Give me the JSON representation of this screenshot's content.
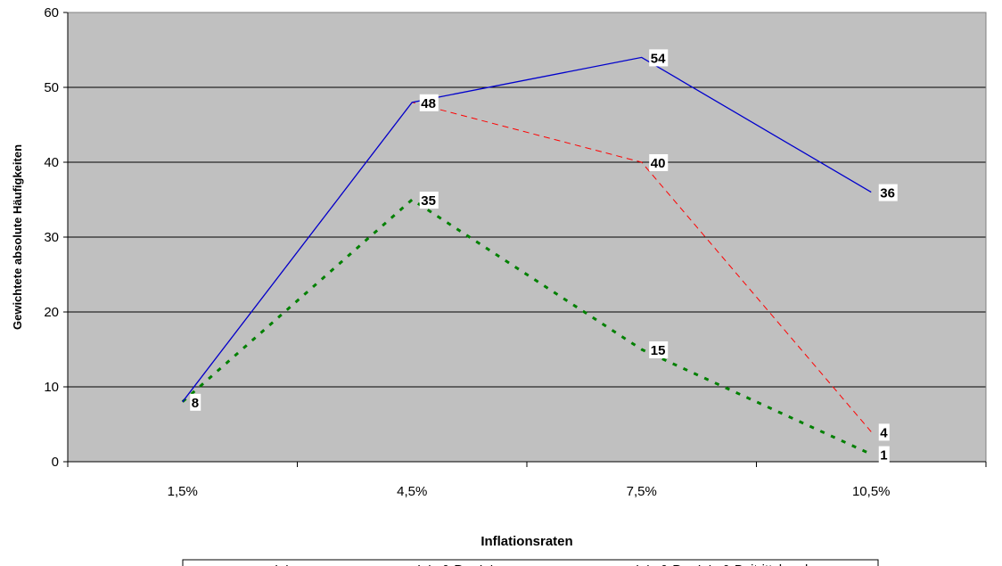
{
  "chart_data": {
    "type": "line",
    "title": "",
    "xlabel": "Inflationsraten",
    "ylabel": "Gewichtete absolute Häufigkeiten",
    "categories": [
      "1,5%",
      "4,5%",
      "7,5%",
      "10,5%"
    ],
    "ylim": [
      0,
      60
    ],
    "yticks": [
      0,
      10,
      20,
      30,
      40,
      50,
      60
    ],
    "grid": true,
    "plot_background": "#c0c0c0",
    "legend_position": "bottom",
    "series": [
      {
        "name": "In's",
        "values": [
          8,
          35,
          15,
          1
        ],
        "color": "#008000",
        "style": "dotted",
        "labels": [
          null,
          "35",
          "15",
          "1"
        ]
      },
      {
        "name": "In's & Pre-In's",
        "values": [
          8,
          48,
          40,
          4
        ],
        "color": "#ff0000",
        "style": "dashed",
        "labels": [
          null,
          null,
          "40",
          "4"
        ]
      },
      {
        "name": "In's & Pre-In's & Beitrittskand.",
        "values": [
          8,
          48,
          54,
          36
        ],
        "color": "#0000cc",
        "style": "solid",
        "labels": [
          "8",
          "48",
          "54",
          "36"
        ]
      }
    ]
  }
}
